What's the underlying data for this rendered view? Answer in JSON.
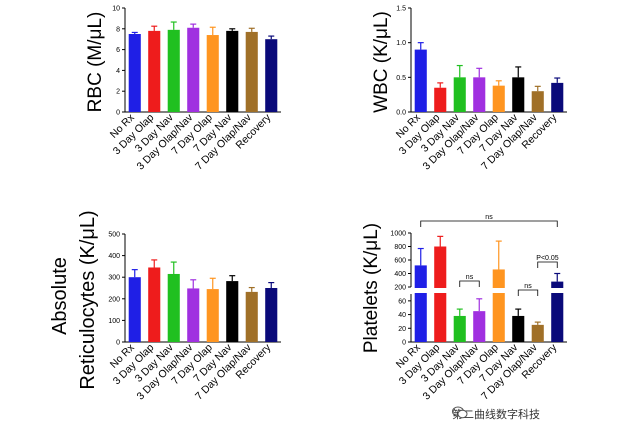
{
  "colors": [
    "#1f1fe6",
    "#ee1c1c",
    "#20c020",
    "#a030e0",
    "#ff9520",
    "#000000",
    "#a07028",
    "#0a0a7a"
  ],
  "categories": [
    "No Rx",
    "3 Day Olap",
    "3 Day Nav",
    "3 Day Olap/Nav",
    "7 Day Olap",
    "7 Day Nav",
    "7 Day Olap/Nav",
    "Recovery"
  ],
  "chart_data": [
    {
      "type": "bar",
      "id": "rbc",
      "ylabel": "RBC (M/μL)",
      "ylim": [
        0,
        10
      ],
      "yticks": [
        "0",
        "2",
        "4",
        "6",
        "8",
        "10"
      ],
      "values": [
        7.5,
        7.8,
        7.9,
        8.1,
        7.4,
        7.8,
        7.7,
        7.0
      ],
      "errors": [
        0.15,
        0.45,
        0.75,
        0.35,
        0.75,
        0.2,
        0.35,
        0.3
      ]
    },
    {
      "type": "bar",
      "id": "wbc",
      "ylabel": "WBC (K/μL)",
      "ylim": [
        0,
        1.5
      ],
      "yticks": [
        "0.0",
        "0.5",
        "1.0",
        "1.5"
      ],
      "values": [
        0.9,
        0.35,
        0.5,
        0.5,
        0.38,
        0.5,
        0.3,
        0.42
      ],
      "errors": [
        0.1,
        0.07,
        0.17,
        0.13,
        0.07,
        0.15,
        0.07,
        0.07
      ]
    },
    {
      "type": "bar",
      "id": "retic",
      "ylabel_line1": "Absolute",
      "ylabel_line2": "Reticulocytes (K/μL)",
      "ylim": [
        0,
        500
      ],
      "yticks": [
        "0",
        "100",
        "200",
        "300",
        "400",
        "500"
      ],
      "values": [
        300,
        345,
        315,
        248,
        245,
        282,
        232,
        250
      ],
      "errors": [
        35,
        35,
        55,
        40,
        50,
        25,
        20,
        25
      ]
    },
    {
      "type": "bar",
      "id": "platelets",
      "ylabel": "Platelets (K/μL)",
      "broken_axis": true,
      "ylim_lower": [
        0,
        70
      ],
      "ylim_upper": [
        200,
        1000
      ],
      "yticks_lower": [
        "0",
        "20",
        "40",
        "60"
      ],
      "yticks_upper": [
        "200",
        "400",
        "600",
        "800",
        "1000"
      ],
      "values": [
        520,
        800,
        38,
        45,
        460,
        38,
        25,
        280
      ],
      "errors": [
        250,
        150,
        10,
        18,
        420,
        10,
        4,
        120
      ],
      "annotations": [
        {
          "text": "ns",
          "from": 0,
          "to": 7
        },
        {
          "text": "ns",
          "from": 2,
          "to": 3
        },
        {
          "text": "ns",
          "from": 5,
          "to": 6
        },
        {
          "text": "P<0.05",
          "from": 6,
          "to": 7
        }
      ]
    }
  ],
  "watermark": "第二曲线数字科技"
}
